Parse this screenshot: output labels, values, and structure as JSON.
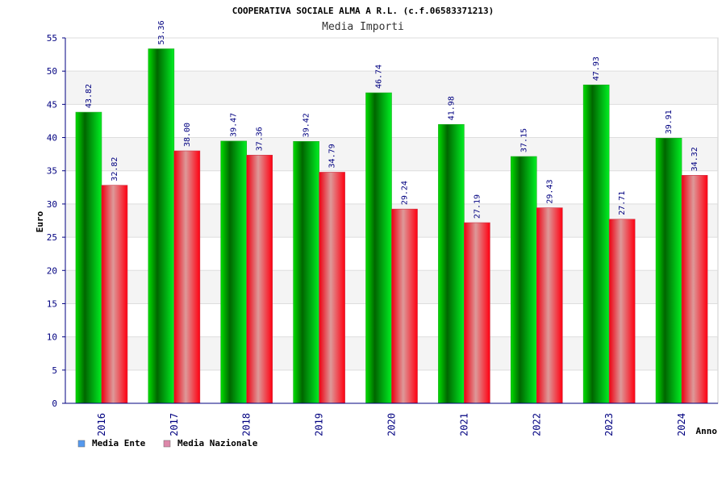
{
  "chart_data": {
    "type": "bar",
    "title": "COOPERATIVA SOCIALE ALMA A R.L. (c.f.06583371213)",
    "subtitle": "Media Importi",
    "xlabel": "Anno",
    "ylabel": "Euro",
    "ylim": [
      0,
      55
    ],
    "yticks": [
      0,
      5,
      10,
      15,
      20,
      25,
      30,
      35,
      40,
      45,
      50,
      55
    ],
    "grid": true,
    "legend_position": "bottom-left",
    "categories": [
      "2016",
      "2017",
      "2018",
      "2019",
      "2020",
      "2021",
      "2022",
      "2023",
      "2024"
    ],
    "series": [
      {
        "name": "Media Ente",
        "values": [
          43.82,
          53.36,
          39.47,
          39.42,
          46.74,
          41.98,
          37.15,
          47.93,
          39.91
        ],
        "labels": [
          "43.82",
          "53.36",
          "39.47",
          "39.42",
          "46.74",
          "41.98",
          "37.15",
          "47.93",
          "39.91"
        ],
        "color": "#00cc00",
        "legend_color": "#5599ee"
      },
      {
        "name": "Media Nazionale",
        "values": [
          32.82,
          38.0,
          37.36,
          34.79,
          29.24,
          27.19,
          29.43,
          27.71,
          34.32
        ],
        "labels": [
          "32.82",
          "38.00",
          "37.36",
          "34.79",
          "29.24",
          "27.19",
          "29.43",
          "27.71",
          "34.32"
        ],
        "color": "#ee1122",
        "legend_color": "#dd88aa"
      }
    ]
  }
}
